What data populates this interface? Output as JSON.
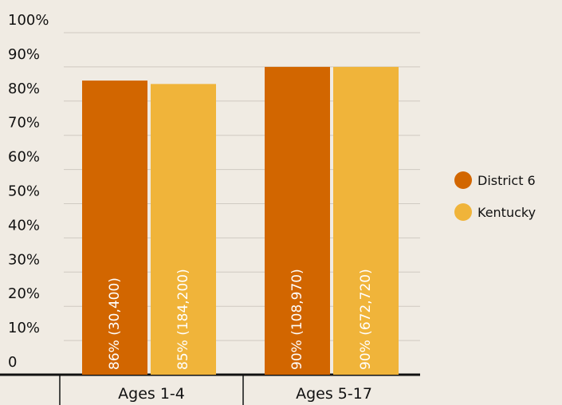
{
  "chart_data": {
    "type": "bar",
    "categories": [
      "Ages 1-4",
      "Ages 5-17"
    ],
    "series": [
      {
        "name": "District 6",
        "color": "#d26600",
        "values": [
          86,
          90
        ],
        "value_labels": [
          "86% (30,400)",
          "90% (108,970)"
        ]
      },
      {
        "name": "Kentucky",
        "color": "#f0b43a",
        "values": [
          85,
          90
        ],
        "value_labels": [
          "85% (184,200)",
          "90% (672,720)"
        ]
      }
    ],
    "ylim": [
      0,
      100
    ],
    "yticks": [
      0,
      {
        "value": 10,
        "label": "10%"
      },
      {
        "value": 20,
        "label": "20%"
      },
      {
        "value": 30,
        "label": "30%"
      },
      {
        "value": 40,
        "label": "40%"
      },
      {
        "value": 50,
        "label": "50%"
      },
      {
        "value": 60,
        "label": "60%"
      },
      {
        "value": 70,
        "label": "70%"
      },
      {
        "value": 80,
        "label": "80%"
      },
      {
        "value": 90,
        "label": "90%"
      },
      {
        "value": 100,
        "label": "100%"
      }
    ],
    "grid": true,
    "legend": "right"
  }
}
